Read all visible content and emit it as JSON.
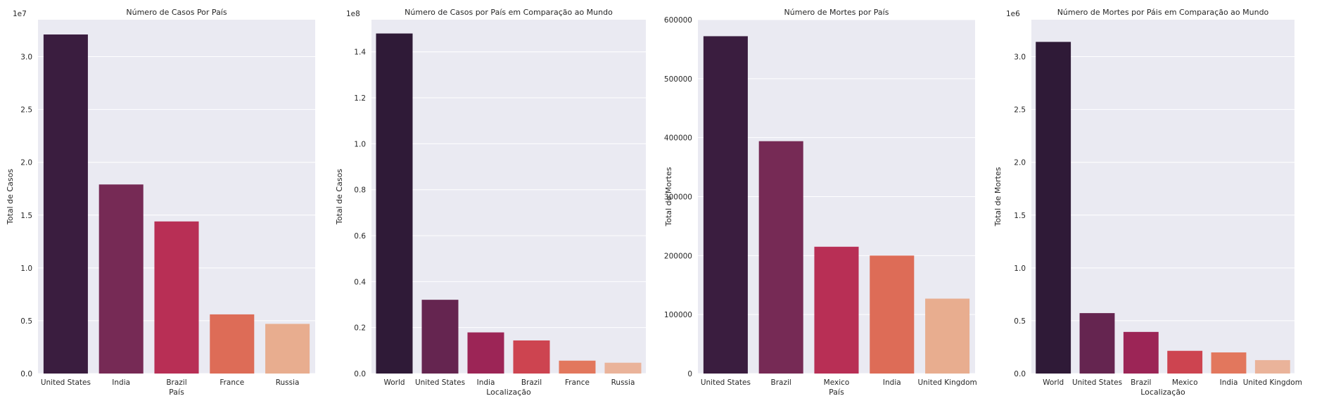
{
  "chart_data": [
    {
      "type": "bar",
      "title": "Número de Casos Por País",
      "xlabel": "País",
      "ylabel": "Total de Casos",
      "multiplier": "1e7",
      "ylim": [
        0,
        3.35
      ],
      "ticks": [
        "0.0",
        "0.5",
        "1.0",
        "1.5",
        "2.0",
        "2.5",
        "3.0"
      ],
      "tick_values": [
        0,
        0.5,
        1.0,
        1.5,
        2.0,
        2.5,
        3.0
      ],
      "categories": [
        "United States",
        "India",
        "Brazil",
        "France",
        "Russia"
      ],
      "values": [
        3.21,
        1.79,
        1.44,
        0.56,
        0.47
      ],
      "colors": [
        "#35193e",
        "#701f57",
        "#ad1759",
        "#e13342",
        "#f37651",
        "#f6b48f"
      ],
      "bar_colors": [
        "#3a1d3f",
        "#762a55",
        "#b82f55",
        "#dd6c57",
        "#e8ad8f"
      ],
      "grid": true
    },
    {
      "type": "bar",
      "title": "Número de Casos por País em Comparação ao Mundo",
      "xlabel": "Localização",
      "ylabel": "Total de Casos",
      "multiplier": "1e8",
      "ylim": [
        0,
        1.54
      ],
      "ticks": [
        "0.0",
        "0.2",
        "0.4",
        "0.6",
        "0.8",
        "1.0",
        "1.2",
        "1.4"
      ],
      "tick_values": [
        0,
        0.2,
        0.4,
        0.6,
        0.8,
        1.0,
        1.2,
        1.4
      ],
      "categories": [
        "World",
        "United States",
        "India",
        "Brazil",
        "France",
        "Russia"
      ],
      "values": [
        1.48,
        0.321,
        0.179,
        0.144,
        0.056,
        0.047
      ],
      "bar_colors": [
        "#2f1a37",
        "#652550",
        "#9c2556",
        "#cd4450",
        "#e2775d",
        "#eab39a"
      ],
      "grid": true
    },
    {
      "type": "bar",
      "title": "Número de Mortes por País",
      "xlabel": "País",
      "ylabel": "Total de Mortes",
      "multiplier": "",
      "ylim": [
        0,
        600000
      ],
      "ticks": [
        "0",
        "100000",
        "200000",
        "300000",
        "400000",
        "500000",
        "600000"
      ],
      "tick_values": [
        0,
        100000,
        200000,
        300000,
        400000,
        500000,
        600000
      ],
      "categories": [
        "United States",
        "Brazil",
        "Mexico",
        "India",
        "United Kingdom"
      ],
      "values": [
        572000,
        394000,
        215000,
        200000,
        127000
      ],
      "bar_colors": [
        "#3a1d3f",
        "#762a55",
        "#b82f55",
        "#dd6c57",
        "#e8ad8f"
      ],
      "grid": true
    },
    {
      "type": "bar",
      "title": "Número de Mortes por Páis em Comparação ao Mundo",
      "xlabel": "Localização",
      "ylabel": "Total de Mortes",
      "multiplier": "1e6",
      "ylim": [
        0,
        3.35
      ],
      "ticks": [
        "0.0",
        "0.5",
        "1.0",
        "1.5",
        "2.0",
        "2.5",
        "3.0"
      ],
      "tick_values": [
        0,
        0.5,
        1.0,
        1.5,
        2.0,
        2.5,
        3.0
      ],
      "categories": [
        "World",
        "United States",
        "Brazil",
        "Mexico",
        "India",
        "United Kingdom"
      ],
      "values": [
        3.14,
        0.572,
        0.394,
        0.215,
        0.2,
        0.127
      ],
      "bar_colors": [
        "#2f1a37",
        "#652550",
        "#9c2556",
        "#cd4450",
        "#e2775d",
        "#eab39a"
      ],
      "grid": true
    }
  ],
  "style": {
    "axes_bg": "#eaeaf2",
    "grid_color": "#ffffff",
    "text_color": "#262626"
  }
}
